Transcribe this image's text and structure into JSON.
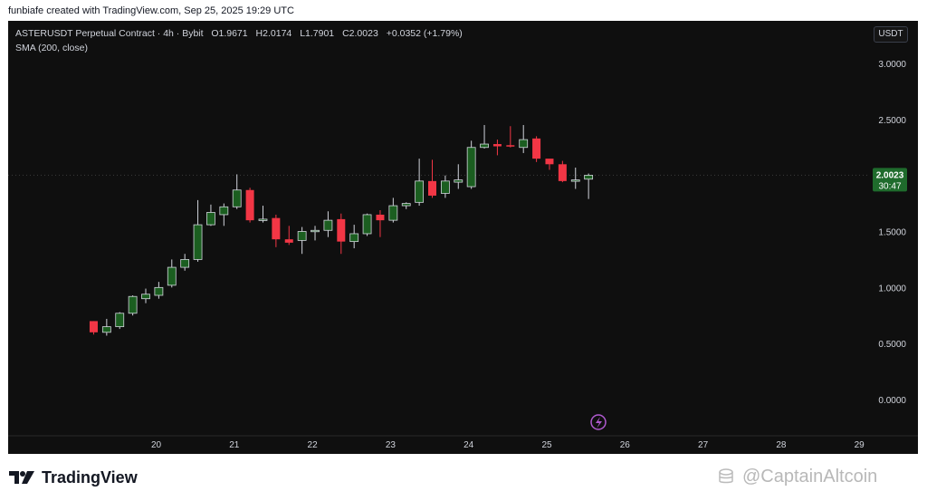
{
  "header_text": "funbiafe created with TradingView.com, Sep 25, 2025 19:29 UTC",
  "legend": {
    "symbol": "ASTERUSDT Perpetual Contract · 4h · Bybit",
    "o_label": "O",
    "o_value": "1.9671",
    "h_label": "H",
    "h_value": "2.0174",
    "l_label": "L",
    "l_value": "1.7901",
    "c_label": "C",
    "c_value": "2.0023",
    "change": "+0.0352 (+1.79%)",
    "indicator": "SMA (200, close)"
  },
  "currency_button": "USDT",
  "price_tag": {
    "price": "2.0023",
    "countdown": "30:47"
  },
  "brand": "TradingView",
  "watermark": "@CaptainAltcoin",
  "colors": {
    "up": "#26a69a",
    "up_fill": "#1b5e20",
    "down": "#f23645",
    "background": "#0f0f0f",
    "tag": "#1f6b2c"
  },
  "chart_data": {
    "type": "candlestick",
    "y_ticks": [
      "3.0000",
      "2.5000",
      "2.0000",
      "1.5000",
      "1.0000",
      "0.5000",
      "0.0000"
    ],
    "x_ticks": [
      "20",
      "21",
      "22",
      "23",
      "24",
      "25",
      "26",
      "27",
      "28",
      "29"
    ],
    "ylim": [
      0,
      3.0
    ],
    "x_start": 19.2,
    "x_step_days": 0.1667,
    "candles": [
      {
        "o": 0.7,
        "h": 0.7,
        "l": 0.58,
        "c": 0.6
      },
      {
        "o": 0.6,
        "h": 0.72,
        "l": 0.57,
        "c": 0.65
      },
      {
        "o": 0.65,
        "h": 0.78,
        "l": 0.63,
        "c": 0.77
      },
      {
        "o": 0.77,
        "h": 0.93,
        "l": 0.75,
        "c": 0.92
      },
      {
        "o": 0.9,
        "h": 0.99,
        "l": 0.86,
        "c": 0.94
      },
      {
        "o": 0.93,
        "h": 1.05,
        "l": 0.9,
        "c": 1.0
      },
      {
        "o": 1.02,
        "h": 1.25,
        "l": 1.0,
        "c": 1.18
      },
      {
        "o": 1.18,
        "h": 1.3,
        "l": 1.15,
        "c": 1.25
      },
      {
        "o": 1.25,
        "h": 1.78,
        "l": 1.23,
        "c": 1.56
      },
      {
        "o": 1.56,
        "h": 1.74,
        "l": 1.55,
        "c": 1.67
      },
      {
        "o": 1.65,
        "h": 1.75,
        "l": 1.55,
        "c": 1.72
      },
      {
        "o": 1.72,
        "h": 2.01,
        "l": 1.7,
        "c": 1.87
      },
      {
        "o": 1.87,
        "h": 1.89,
        "l": 1.58,
        "c": 1.6
      },
      {
        "o": 1.6,
        "h": 1.73,
        "l": 1.58,
        "c": 1.61
      },
      {
        "o": 1.62,
        "h": 1.65,
        "l": 1.36,
        "c": 1.43
      },
      {
        "o": 1.43,
        "h": 1.55,
        "l": 1.38,
        "c": 1.4
      },
      {
        "o": 1.42,
        "h": 1.54,
        "l": 1.3,
        "c": 1.5
      },
      {
        "o": 1.5,
        "h": 1.55,
        "l": 1.42,
        "c": 1.51
      },
      {
        "o": 1.51,
        "h": 1.68,
        "l": 1.45,
        "c": 1.6
      },
      {
        "o": 1.61,
        "h": 1.66,
        "l": 1.3,
        "c": 1.41
      },
      {
        "o": 1.41,
        "h": 1.56,
        "l": 1.35,
        "c": 1.48
      },
      {
        "o": 1.48,
        "h": 1.66,
        "l": 1.46,
        "c": 1.65
      },
      {
        "o": 1.65,
        "h": 1.69,
        "l": 1.45,
        "c": 1.6
      },
      {
        "o": 1.6,
        "h": 1.8,
        "l": 1.58,
        "c": 1.73
      },
      {
        "o": 1.73,
        "h": 1.76,
        "l": 1.7,
        "c": 1.75
      },
      {
        "o": 1.76,
        "h": 2.15,
        "l": 1.73,
        "c": 1.95
      },
      {
        "o": 1.95,
        "h": 2.14,
        "l": 1.8,
        "c": 1.82
      },
      {
        "o": 1.84,
        "h": 2.0,
        "l": 1.8,
        "c": 1.95
      },
      {
        "o": 1.94,
        "h": 2.1,
        "l": 1.88,
        "c": 1.96
      },
      {
        "o": 1.9,
        "h": 2.31,
        "l": 1.88,
        "c": 2.25
      },
      {
        "o": 2.25,
        "h": 2.45,
        "l": 2.24,
        "c": 2.28
      },
      {
        "o": 2.28,
        "h": 2.32,
        "l": 2.18,
        "c": 2.26
      },
      {
        "o": 2.27,
        "h": 2.44,
        "l": 2.25,
        "c": 2.26
      },
      {
        "o": 2.25,
        "h": 2.45,
        "l": 2.2,
        "c": 2.32
      },
      {
        "o": 2.33,
        "h": 2.35,
        "l": 2.12,
        "c": 2.15
      },
      {
        "o": 2.15,
        "h": 2.14,
        "l": 2.05,
        "c": 2.1
      },
      {
        "o": 2.1,
        "h": 2.13,
        "l": 1.94,
        "c": 1.95
      },
      {
        "o": 1.96,
        "h": 2.07,
        "l": 1.88,
        "c": 1.96
      },
      {
        "o": 1.967,
        "h": 2.017,
        "l": 1.79,
        "c": 2.002
      }
    ]
  }
}
